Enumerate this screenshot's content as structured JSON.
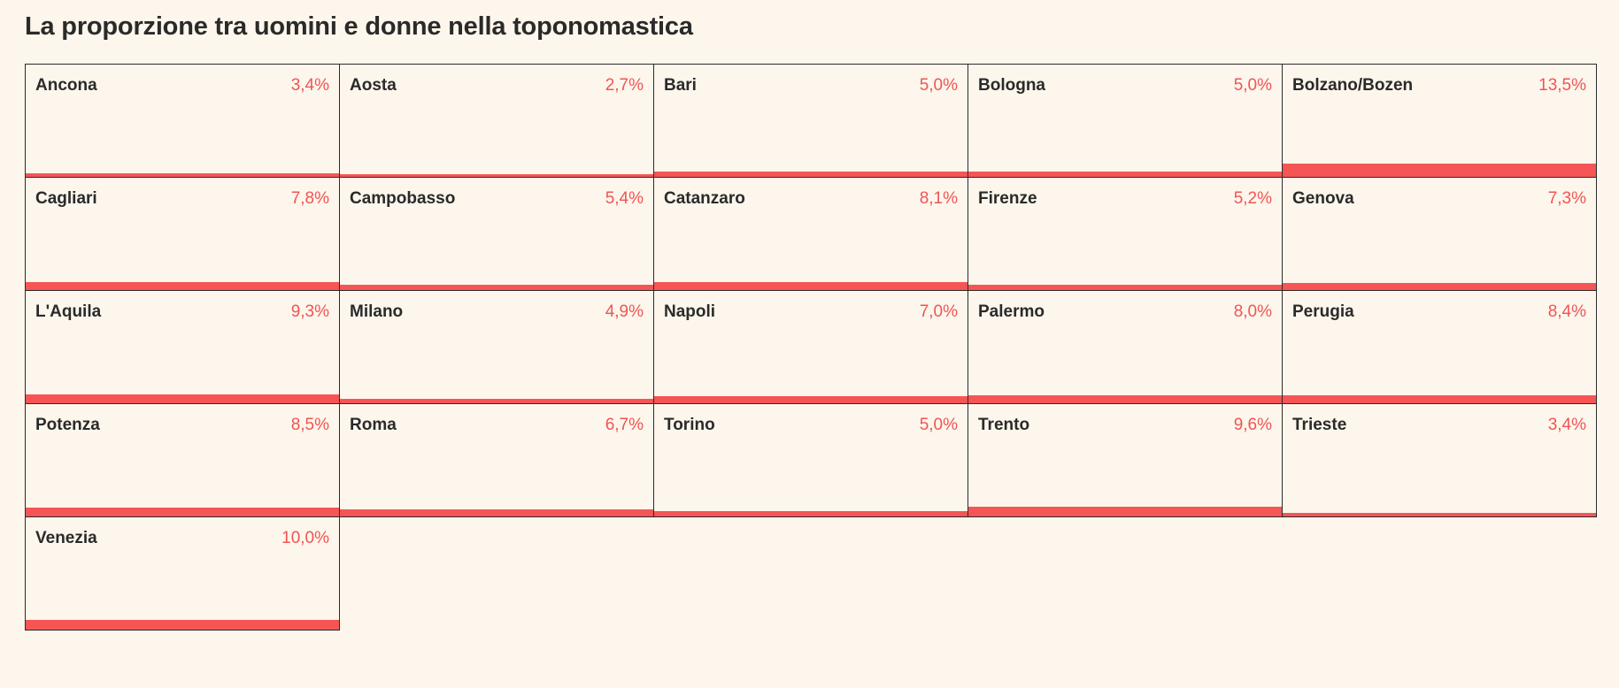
{
  "title": "La proporzione tra uomini e donne nella toponomastica",
  "colors": {
    "background": "#fdf6ec",
    "bar": "#f55555",
    "value_text": "#f05454",
    "border": "#2b2b2b"
  },
  "chart_data": {
    "type": "bar",
    "title": "La proporzione tra uomini e donne nella toponomastica",
    "layout": "small-multiples",
    "categories": [
      "Ancona",
      "Aosta",
      "Bari",
      "Bologna",
      "Bolzano/Bozen",
      "Cagliari",
      "Campobasso",
      "Catanzaro",
      "Firenze",
      "Genova",
      "L'Aquila",
      "Milano",
      "Napoli",
      "Palermo",
      "Perugia",
      "Potenza",
      "Roma",
      "Torino",
      "Trento",
      "Trieste",
      "Venezia"
    ],
    "values": [
      3.4,
      2.7,
      5.0,
      5.0,
      13.5,
      7.8,
      5.4,
      8.1,
      5.2,
      7.3,
      9.3,
      4.9,
      7.0,
      8.0,
      8.4,
      8.5,
      6.7,
      5.0,
      9.6,
      3.4,
      10.0
    ],
    "labels": [
      "3,4%",
      "2,7%",
      "5,0%",
      "5,0%",
      "13,5%",
      "7,8%",
      "5,4%",
      "8,1%",
      "5,2%",
      "7,3%",
      "9,3%",
      "4,9%",
      "7,0%",
      "8,0%",
      "8,4%",
      "8,5%",
      "6,7%",
      "5,0%",
      "9,6%",
      "3,4%",
      "10,0%"
    ],
    "unit": "%"
  }
}
